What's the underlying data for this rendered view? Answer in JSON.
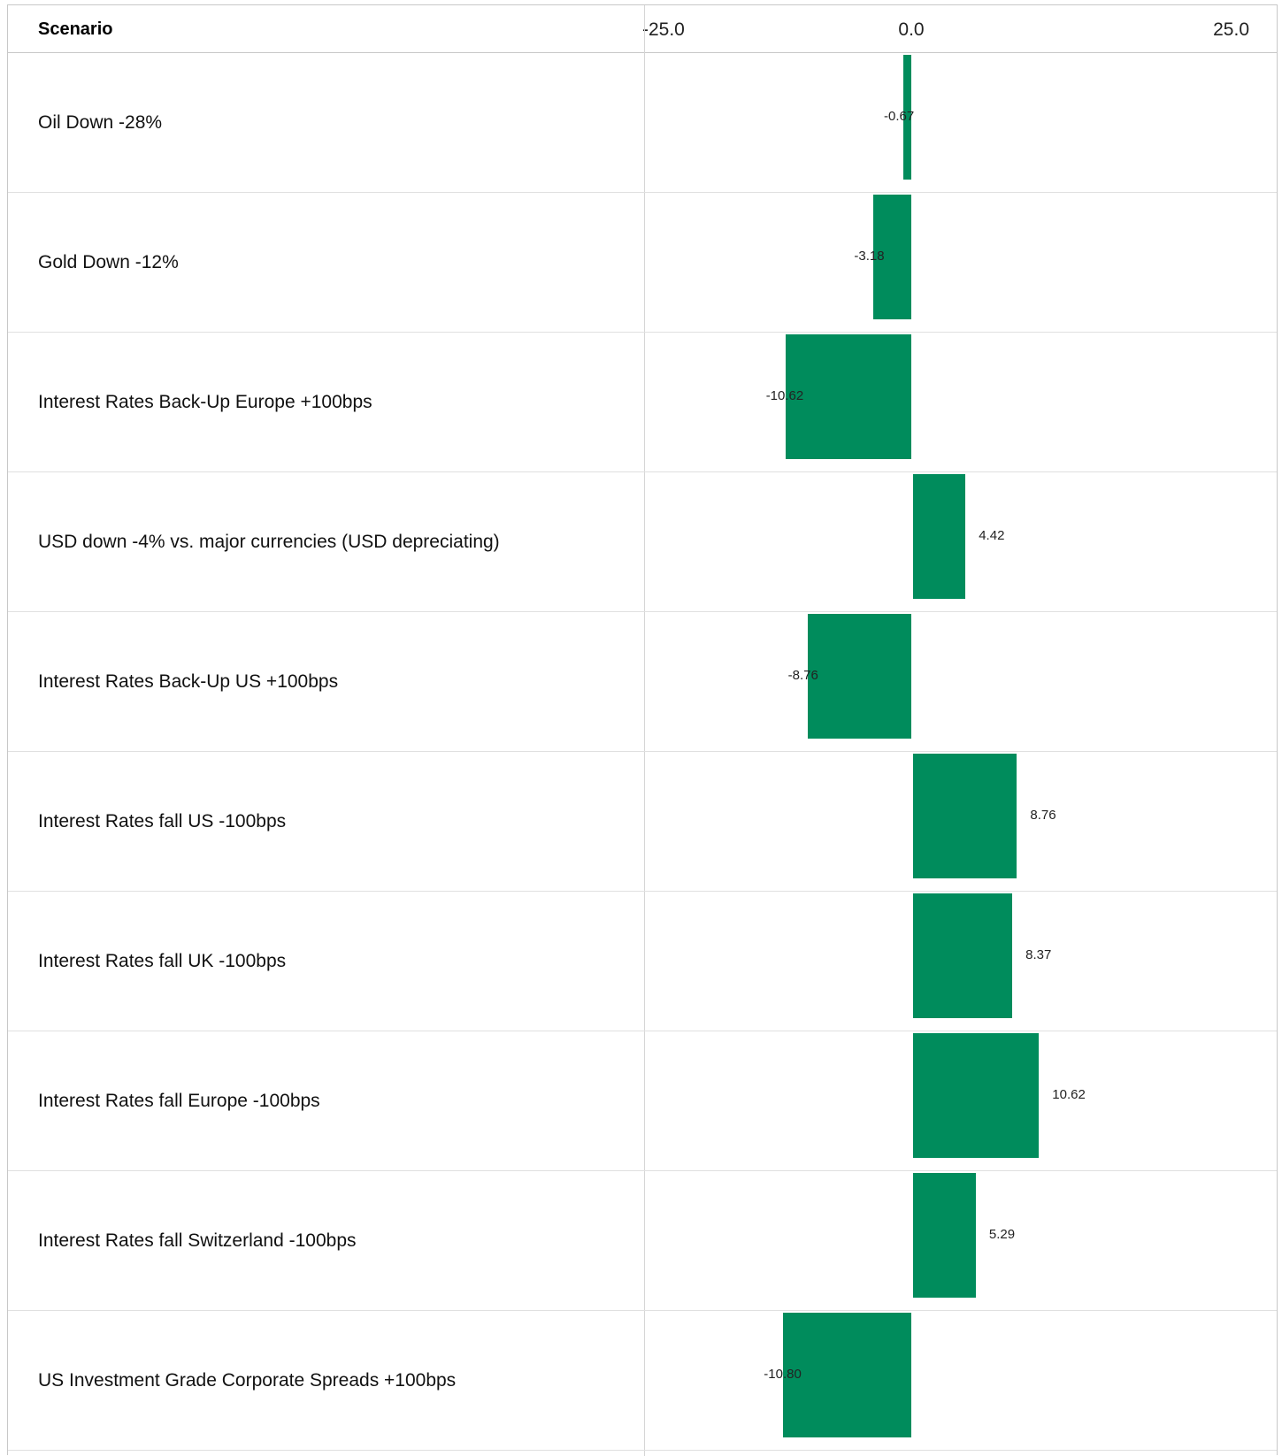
{
  "header": {
    "scenario_label": "Scenario"
  },
  "colors": {
    "bar": "#008c5c"
  },
  "chart_data": {
    "type": "bar",
    "orientation": "horizontal",
    "xlim": [
      -25,
      25
    ],
    "ticks": [
      {
        "value": -25,
        "label": "-25.0"
      },
      {
        "value": 0,
        "label": "0.0"
      },
      {
        "value": 25,
        "label": "25.0"
      }
    ],
    "grid": false,
    "categories": [
      "Oil Down -28%",
      "Gold Down -12%",
      "Interest Rates Back-Up Europe +100bps",
      "USD down -4% vs. major currencies (USD depreciating)",
      "Interest Rates Back-Up US +100bps",
      "Interest Rates fall US -100bps",
      "Interest Rates fall UK -100bps",
      "Interest Rates fall Europe -100bps",
      "Interest Rates fall Switzerland -100bps",
      "US Investment Grade Corporate Spreads +100bps"
    ],
    "values": [
      -0.67,
      -3.18,
      -10.62,
      4.42,
      -8.76,
      8.76,
      8.37,
      10.62,
      5.29,
      -10.8
    ],
    "value_labels": [
      "-0.67",
      "-3.18",
      "-10.62",
      "4.42",
      "-8.76",
      "8.76",
      "8.37",
      "10.62",
      "5.29",
      "-10.80"
    ]
  }
}
